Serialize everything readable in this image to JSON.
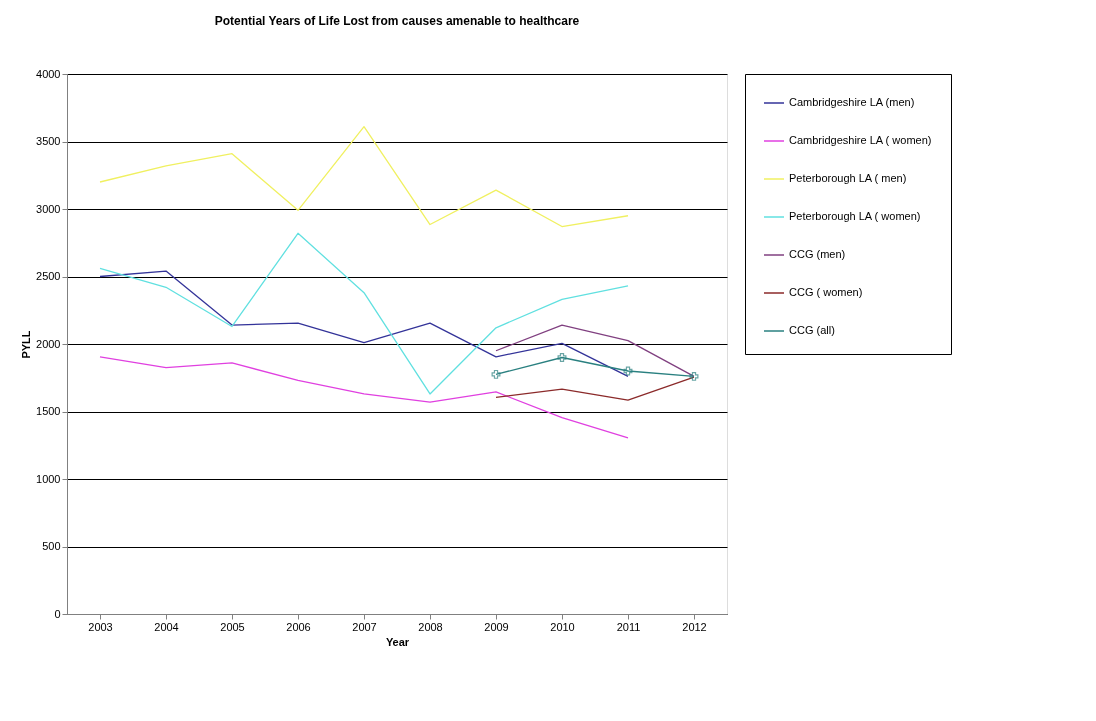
{
  "chart_data": {
    "type": "line",
    "title": "Potential Years of Life Lost from causes amenable to healthcare",
    "xlabel": "Year",
    "ylabel": "PYLL",
    "categories": [
      "2003",
      "2004",
      "2005",
      "2006",
      "2007",
      "2008",
      "2009",
      "2010",
      "2011",
      "2012"
    ],
    "series": [
      {
        "name": "Cambridgeshire LA (men)",
        "color": "#333399",
        "values": [
          2500,
          2540,
          2140,
          2155,
          2010,
          2155,
          1905,
          2005,
          1760,
          null
        ]
      },
      {
        "name": "Cambridgeshire LA ( women)",
        "color": "#e040e0",
        "values": [
          1905,
          1825,
          1860,
          1730,
          1630,
          1570,
          1645,
          1455,
          1305,
          null
        ]
      },
      {
        "name": "Peterborough LA ( men)",
        "color": "#f0f060",
        "values": [
          3200,
          3320,
          3410,
          2990,
          3610,
          2885,
          3140,
          2870,
          2950,
          null
        ]
      },
      {
        "name": "Peterborough LA ( women)",
        "color": "#60e0e0",
        "values": [
          2560,
          2420,
          2130,
          2820,
          2380,
          1630,
          2120,
          2330,
          2430,
          null
        ]
      },
      {
        "name": "CCG (men)",
        "color": "#804080",
        "values": [
          null,
          null,
          null,
          null,
          null,
          null,
          1950,
          2140,
          2025,
          1760
        ]
      },
      {
        "name": "CCG ( women)",
        "color": "#8b2a2a",
        "values": [
          null,
          null,
          null,
          null,
          null,
          null,
          1605,
          1665,
          1585,
          1755
        ]
      },
      {
        "name": "CCG (all)",
        "color": "#2a8080",
        "marker": "cross",
        "values": [
          null,
          null,
          null,
          null,
          null,
          null,
          1775,
          1900,
          1800,
          1760
        ]
      }
    ],
    "ylim": [
      0,
      4000
    ],
    "yticks": [
      0,
      500,
      1000,
      1500,
      2000,
      2500,
      3000,
      3500,
      4000
    ],
    "grid": "y",
    "legend": "right",
    "marker": "none",
    "line_style": "solid"
  }
}
